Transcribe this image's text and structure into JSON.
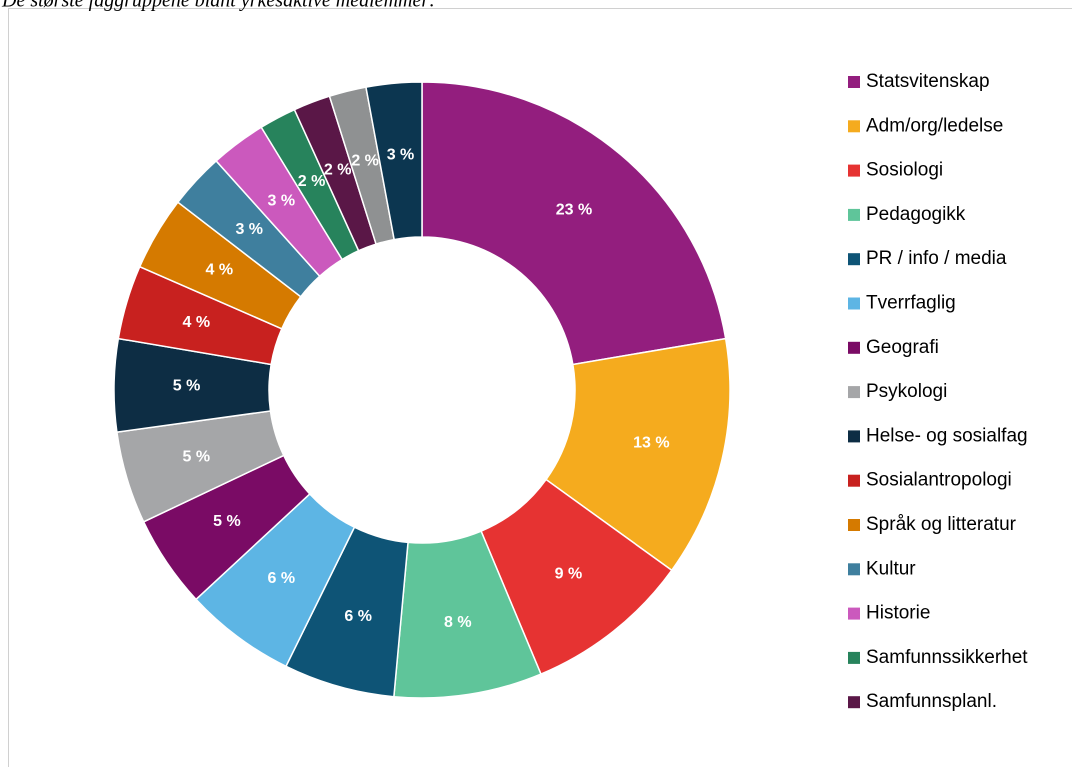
{
  "chart_data": {
    "type": "pie",
    "title": "De største faggruppene blant yrkesaktive medlemmer:",
    "donut": true,
    "categories": [
      "Statsvitenskap",
      "Adm/org/ledelse",
      "Sosiologi",
      "Pedagogikk",
      "PR / info / media",
      "Tverrfaglig",
      "Geografi",
      "Psykologi",
      "Helse- og sosialfag",
      "Sosialantropologi",
      "Språk og litteratur",
      "Kultur",
      "Historie",
      "Samfunnssikkerhet",
      "Samfunnsplanl.",
      null,
      null
    ],
    "values": [
      23,
      13,
      9,
      8,
      6,
      6,
      5,
      5,
      5,
      4,
      4,
      3,
      3,
      2,
      2,
      2,
      3
    ],
    "value_labels": [
      "23 %",
      "13 %",
      "9 %",
      "8 %",
      "6 %",
      "6 %",
      "5 %",
      "5 %",
      "5 %",
      "4 %",
      "4 %",
      "3 %",
      "3 %",
      "2 %",
      "2 %",
      "2 %",
      "3 %"
    ],
    "colors": [
      "#931e7e",
      "#f5ab1e",
      "#e63332",
      "#5fc59a",
      "#0e5476",
      "#5db5e4",
      "#7a0b65",
      "#a5a6a8",
      "#0d2d44",
      "#c8211f",
      "#d57a00",
      "#3f7f9e",
      "#cb59bd",
      "#27835c",
      "#5a1747",
      "#8f9192",
      "#0c3650"
    ],
    "legend": "right"
  }
}
